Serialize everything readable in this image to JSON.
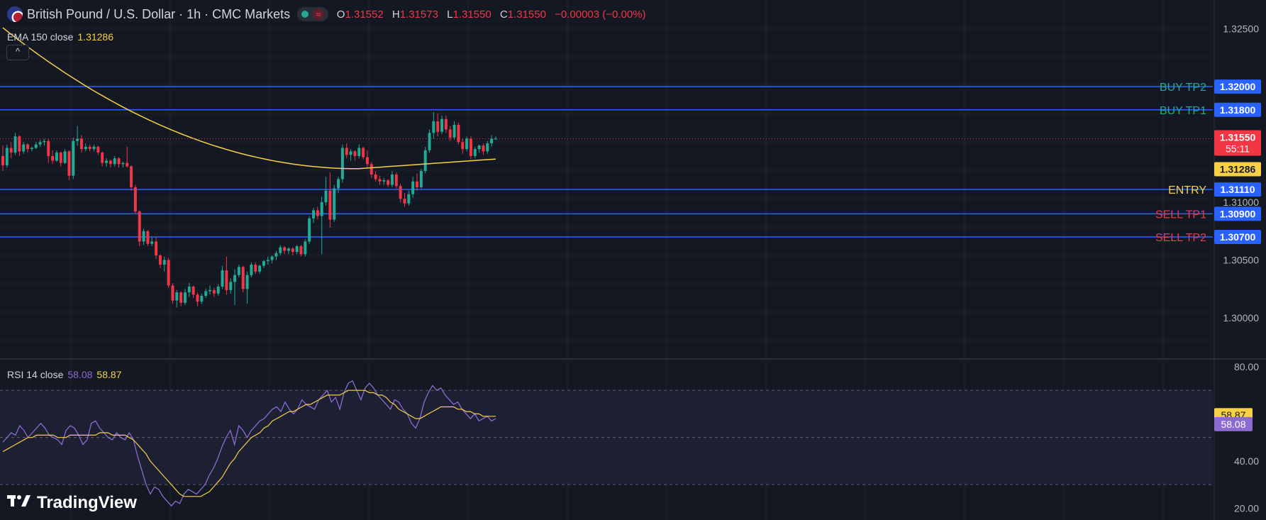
{
  "header": {
    "title": "British Pound / U.S. Dollar · 1h · CMC Markets",
    "ohlc": [
      {
        "key": "O",
        "value": "1.31552"
      },
      {
        "key": "H",
        "value": "1.31573"
      },
      {
        "key": "L",
        "value": "1.31550"
      },
      {
        "key": "C",
        "value": "1.31550"
      }
    ],
    "change": "−0.00003 (−0.00%)"
  },
  "ema_legend": {
    "label": "EMA 150 close",
    "value": "1.31286"
  },
  "rsi_legend": {
    "label": "RSI 14 close",
    "value1": "58.08",
    "value2": "58.87"
  },
  "collapse_icon": "chevron-up-icon",
  "brand": {
    "logo_text": "TradingView",
    "icon": "tradingview-logo-icon"
  },
  "colors": {
    "background": "#141823",
    "up": "#22ab94",
    "down": "#f23645",
    "ema": "#f7d046",
    "level_line": "#2962ff",
    "rsi": "#8b6bd3",
    "rsi_ma": "#f7d046"
  },
  "chart_data": [
    {
      "type": "candlestick",
      "title": "British Pound / U.S. Dollar · 1h · CMC Markets",
      "ylim": [
        1.2965,
        1.3275
      ],
      "y_ticks": [
        "1.32500",
        "1.31000",
        "1.30500",
        "1.30000"
      ],
      "candles": [
        {
          "o": 1.314,
          "h": 1.3149,
          "l": 1.3127,
          "c": 1.3132
        },
        {
          "o": 1.3132,
          "h": 1.315,
          "l": 1.313,
          "c": 1.3147
        },
        {
          "o": 1.3147,
          "h": 1.3152,
          "l": 1.3138,
          "c": 1.3143
        },
        {
          "o": 1.3143,
          "h": 1.316,
          "l": 1.3141,
          "c": 1.3157
        },
        {
          "o": 1.3157,
          "h": 1.3158,
          "l": 1.314,
          "c": 1.3144
        },
        {
          "o": 1.3144,
          "h": 1.3152,
          "l": 1.3142,
          "c": 1.315
        },
        {
          "o": 1.315,
          "h": 1.3151,
          "l": 1.3143,
          "c": 1.3146
        },
        {
          "o": 1.3146,
          "h": 1.3148,
          "l": 1.3144,
          "c": 1.3147
        },
        {
          "o": 1.3147,
          "h": 1.3152,
          "l": 1.3146,
          "c": 1.315
        },
        {
          "o": 1.315,
          "h": 1.3154,
          "l": 1.3148,
          "c": 1.3152
        },
        {
          "o": 1.3152,
          "h": 1.3155,
          "l": 1.3149,
          "c": 1.3153
        },
        {
          "o": 1.3153,
          "h": 1.3155,
          "l": 1.3134,
          "c": 1.314
        },
        {
          "o": 1.314,
          "h": 1.3145,
          "l": 1.3133,
          "c": 1.3136
        },
        {
          "o": 1.3136,
          "h": 1.3145,
          "l": 1.3135,
          "c": 1.3143
        },
        {
          "o": 1.3143,
          "h": 1.3144,
          "l": 1.3131,
          "c": 1.3134
        },
        {
          "o": 1.3134,
          "h": 1.3146,
          "l": 1.3133,
          "c": 1.3144
        },
        {
          "o": 1.3144,
          "h": 1.3145,
          "l": 1.3119,
          "c": 1.3123
        },
        {
          "o": 1.3123,
          "h": 1.3156,
          "l": 1.312,
          "c": 1.3153
        },
        {
          "o": 1.3153,
          "h": 1.3166,
          "l": 1.3149,
          "c": 1.3155
        },
        {
          "o": 1.3155,
          "h": 1.3158,
          "l": 1.3143,
          "c": 1.3146
        },
        {
          "o": 1.3146,
          "h": 1.3151,
          "l": 1.3144,
          "c": 1.3148
        },
        {
          "o": 1.3148,
          "h": 1.315,
          "l": 1.3144,
          "c": 1.3146
        },
        {
          "o": 1.3146,
          "h": 1.315,
          "l": 1.3144,
          "c": 1.3148
        },
        {
          "o": 1.3148,
          "h": 1.3149,
          "l": 1.3141,
          "c": 1.3143
        },
        {
          "o": 1.3143,
          "h": 1.3144,
          "l": 1.3131,
          "c": 1.3134
        },
        {
          "o": 1.3134,
          "h": 1.3138,
          "l": 1.3131,
          "c": 1.3136
        },
        {
          "o": 1.3136,
          "h": 1.3137,
          "l": 1.313,
          "c": 1.3133
        },
        {
          "o": 1.3133,
          "h": 1.314,
          "l": 1.3131,
          "c": 1.3138
        },
        {
          "o": 1.3138,
          "h": 1.3139,
          "l": 1.313,
          "c": 1.3133
        },
        {
          "o": 1.3133,
          "h": 1.3135,
          "l": 1.313,
          "c": 1.3134
        },
        {
          "o": 1.3134,
          "h": 1.3148,
          "l": 1.313,
          "c": 1.3131
        },
        {
          "o": 1.3131,
          "h": 1.3132,
          "l": 1.311,
          "c": 1.3113
        },
        {
          "o": 1.3113,
          "h": 1.3115,
          "l": 1.309,
          "c": 1.3092
        },
        {
          "o": 1.3092,
          "h": 1.3093,
          "l": 1.3062,
          "c": 1.3066
        },
        {
          "o": 1.3066,
          "h": 1.3077,
          "l": 1.3063,
          "c": 1.3075
        },
        {
          "o": 1.3075,
          "h": 1.3076,
          "l": 1.3062,
          "c": 1.3064
        },
        {
          "o": 1.3064,
          "h": 1.307,
          "l": 1.3062,
          "c": 1.3066
        },
        {
          "o": 1.3066,
          "h": 1.307,
          "l": 1.3051,
          "c": 1.3054
        },
        {
          "o": 1.3054,
          "h": 1.3055,
          "l": 1.3043,
          "c": 1.3046
        },
        {
          "o": 1.3046,
          "h": 1.3053,
          "l": 1.304,
          "c": 1.305
        },
        {
          "o": 1.305,
          "h": 1.3052,
          "l": 1.3026,
          "c": 1.3028
        },
        {
          "o": 1.3028,
          "h": 1.303,
          "l": 1.3012,
          "c": 1.3015
        },
        {
          "o": 1.3015,
          "h": 1.3024,
          "l": 1.3009,
          "c": 1.3022
        },
        {
          "o": 1.3022,
          "h": 1.3023,
          "l": 1.301,
          "c": 1.3013
        },
        {
          "o": 1.3013,
          "h": 1.3025,
          "l": 1.3011,
          "c": 1.3022
        },
        {
          "o": 1.3022,
          "h": 1.303,
          "l": 1.3018,
          "c": 1.3027
        },
        {
          "o": 1.3027,
          "h": 1.3028,
          "l": 1.3017,
          "c": 1.302
        },
        {
          "o": 1.302,
          "h": 1.3022,
          "l": 1.301,
          "c": 1.3014
        },
        {
          "o": 1.3014,
          "h": 1.3021,
          "l": 1.3012,
          "c": 1.3019
        },
        {
          "o": 1.3019,
          "h": 1.3025,
          "l": 1.3017,
          "c": 1.3023
        },
        {
          "o": 1.3023,
          "h": 1.3028,
          "l": 1.302,
          "c": 1.3024
        },
        {
          "o": 1.3024,
          "h": 1.3026,
          "l": 1.3018,
          "c": 1.3021
        },
        {
          "o": 1.3021,
          "h": 1.3029,
          "l": 1.3019,
          "c": 1.3027
        },
        {
          "o": 1.3027,
          "h": 1.3045,
          "l": 1.3025,
          "c": 1.3041
        },
        {
          "o": 1.3041,
          "h": 1.3053,
          "l": 1.302,
          "c": 1.3024
        },
        {
          "o": 1.3024,
          "h": 1.3034,
          "l": 1.3021,
          "c": 1.3031
        },
        {
          "o": 1.3031,
          "h": 1.3042,
          "l": 1.3011,
          "c": 1.3037
        },
        {
          "o": 1.3037,
          "h": 1.3046,
          "l": 1.3035,
          "c": 1.3044
        },
        {
          "o": 1.3044,
          "h": 1.3045,
          "l": 1.3022,
          "c": 1.3025
        },
        {
          "o": 1.3025,
          "h": 1.304,
          "l": 1.3012,
          "c": 1.3037
        },
        {
          "o": 1.3037,
          "h": 1.3048,
          "l": 1.3035,
          "c": 1.3046
        },
        {
          "o": 1.3046,
          "h": 1.3048,
          "l": 1.3038,
          "c": 1.304
        },
        {
          "o": 1.304,
          "h": 1.3046,
          "l": 1.3038,
          "c": 1.3045
        },
        {
          "o": 1.3045,
          "h": 1.305,
          "l": 1.3043,
          "c": 1.3049
        },
        {
          "o": 1.3049,
          "h": 1.3053,
          "l": 1.3046,
          "c": 1.305
        },
        {
          "o": 1.305,
          "h": 1.3054,
          "l": 1.3047,
          "c": 1.3053
        },
        {
          "o": 1.3053,
          "h": 1.3058,
          "l": 1.305,
          "c": 1.3056
        },
        {
          "o": 1.3056,
          "h": 1.3063,
          "l": 1.3054,
          "c": 1.3061
        },
        {
          "o": 1.3061,
          "h": 1.3062,
          "l": 1.3055,
          "c": 1.3058
        },
        {
          "o": 1.3058,
          "h": 1.3061,
          "l": 1.3055,
          "c": 1.306
        },
        {
          "o": 1.306,
          "h": 1.3061,
          "l": 1.3054,
          "c": 1.3057
        },
        {
          "o": 1.3057,
          "h": 1.3063,
          "l": 1.3055,
          "c": 1.3062
        },
        {
          "o": 1.3062,
          "h": 1.3063,
          "l": 1.3053,
          "c": 1.3055
        },
        {
          "o": 1.3055,
          "h": 1.3068,
          "l": 1.3053,
          "c": 1.3066
        },
        {
          "o": 1.3066,
          "h": 1.3088,
          "l": 1.3064,
          "c": 1.3086
        },
        {
          "o": 1.3086,
          "h": 1.3095,
          "l": 1.3082,
          "c": 1.3093
        },
        {
          "o": 1.3093,
          "h": 1.3096,
          "l": 1.3085,
          "c": 1.3088
        },
        {
          "o": 1.3088,
          "h": 1.3105,
          "l": 1.3055,
          "c": 1.31
        },
        {
          "o": 1.31,
          "h": 1.3122,
          "l": 1.3097,
          "c": 1.311
        },
        {
          "o": 1.311,
          "h": 1.3126,
          "l": 1.3078,
          "c": 1.3085
        },
        {
          "o": 1.3085,
          "h": 1.3115,
          "l": 1.3083,
          "c": 1.3112
        },
        {
          "o": 1.3112,
          "h": 1.3122,
          "l": 1.3108,
          "c": 1.312
        },
        {
          "o": 1.312,
          "h": 1.315,
          "l": 1.3117,
          "c": 1.3147
        },
        {
          "o": 1.3147,
          "h": 1.3151,
          "l": 1.3138,
          "c": 1.3141
        },
        {
          "o": 1.3141,
          "h": 1.3146,
          "l": 1.3136,
          "c": 1.3144
        },
        {
          "o": 1.3144,
          "h": 1.3145,
          "l": 1.3136,
          "c": 1.314
        },
        {
          "o": 1.314,
          "h": 1.315,
          "l": 1.3138,
          "c": 1.3147
        },
        {
          "o": 1.3147,
          "h": 1.3148,
          "l": 1.3137,
          "c": 1.3139
        },
        {
          "o": 1.3139,
          "h": 1.3145,
          "l": 1.313,
          "c": 1.3133
        },
        {
          "o": 1.3133,
          "h": 1.3135,
          "l": 1.3121,
          "c": 1.3124
        },
        {
          "o": 1.3124,
          "h": 1.3127,
          "l": 1.3118,
          "c": 1.312
        },
        {
          "o": 1.312,
          "h": 1.3123,
          "l": 1.3115,
          "c": 1.3118
        },
        {
          "o": 1.3118,
          "h": 1.3121,
          "l": 1.3115,
          "c": 1.3119
        },
        {
          "o": 1.3119,
          "h": 1.312,
          "l": 1.3113,
          "c": 1.3115
        },
        {
          "o": 1.3115,
          "h": 1.3127,
          "l": 1.3113,
          "c": 1.3124
        },
        {
          "o": 1.3124,
          "h": 1.3126,
          "l": 1.3112,
          "c": 1.3114
        },
        {
          "o": 1.3114,
          "h": 1.3116,
          "l": 1.31,
          "c": 1.3103
        },
        {
          "o": 1.3103,
          "h": 1.3108,
          "l": 1.3096,
          "c": 1.3099
        },
        {
          "o": 1.3099,
          "h": 1.311,
          "l": 1.3097,
          "c": 1.3107
        },
        {
          "o": 1.3107,
          "h": 1.3122,
          "l": 1.3104,
          "c": 1.3118
        },
        {
          "o": 1.3118,
          "h": 1.3125,
          "l": 1.311,
          "c": 1.3113
        },
        {
          "o": 1.3113,
          "h": 1.3129,
          "l": 1.3112,
          "c": 1.3127
        },
        {
          "o": 1.3127,
          "h": 1.3148,
          "l": 1.3125,
          "c": 1.3145
        },
        {
          "o": 1.3145,
          "h": 1.3163,
          "l": 1.3143,
          "c": 1.316
        },
        {
          "o": 1.316,
          "h": 1.3178,
          "l": 1.3155,
          "c": 1.317
        },
        {
          "o": 1.317,
          "h": 1.3177,
          "l": 1.3157,
          "c": 1.3161
        },
        {
          "o": 1.3161,
          "h": 1.3175,
          "l": 1.3159,
          "c": 1.3172
        },
        {
          "o": 1.3172,
          "h": 1.3175,
          "l": 1.316,
          "c": 1.3163
        },
        {
          "o": 1.3163,
          "h": 1.3166,
          "l": 1.3153,
          "c": 1.3156
        },
        {
          "o": 1.3156,
          "h": 1.317,
          "l": 1.3154,
          "c": 1.3167
        },
        {
          "o": 1.3167,
          "h": 1.3169,
          "l": 1.315,
          "c": 1.3152
        },
        {
          "o": 1.3152,
          "h": 1.3155,
          "l": 1.3142,
          "c": 1.3146
        },
        {
          "o": 1.3146,
          "h": 1.3157,
          "l": 1.3144,
          "c": 1.3155
        },
        {
          "o": 1.3155,
          "h": 1.3157,
          "l": 1.3137,
          "c": 1.314
        },
        {
          "o": 1.314,
          "h": 1.3148,
          "l": 1.3138,
          "c": 1.3146
        },
        {
          "o": 1.3146,
          "h": 1.315,
          "l": 1.3143,
          "c": 1.3149
        },
        {
          "o": 1.3149,
          "h": 1.3151,
          "l": 1.3141,
          "c": 1.3144
        },
        {
          "o": 1.3144,
          "h": 1.3153,
          "l": 1.3142,
          "c": 1.3151
        },
        {
          "o": 1.3151,
          "h": 1.3158,
          "l": 1.3148,
          "c": 1.3155
        },
        {
          "o": 1.3155,
          "h": 1.3157,
          "l": 1.3154,
          "c": 1.3155
        }
      ],
      "ema": {
        "label": "EMA 150 close",
        "start": 1.3251,
        "end": 1.3129
      },
      "current_price": {
        "value": "1.31550",
        "countdown": "55:11"
      },
      "ema_value_tag": "1.31286",
      "levels": [
        {
          "name": "BUY TP2",
          "price": 1.32,
          "tag": "1.32000",
          "label_color": "#22ab94"
        },
        {
          "name": "BUY TP1",
          "price": 1.318,
          "tag": "1.31800",
          "label_color": "#22ab94"
        },
        {
          "name": "ENTRY",
          "price": 1.3111,
          "tag": "1.31110",
          "label_color": "#f7d046"
        },
        {
          "name": "SELL TP1",
          "price": 1.309,
          "tag": "1.30900",
          "label_color": "#f23645"
        },
        {
          "name": "SELL TP2",
          "price": 1.307,
          "tag": "1.30700",
          "label_color": "#f23645"
        }
      ],
      "grid": true
    },
    {
      "type": "line",
      "title": "RSI 14 close",
      "ylim": [
        15,
        83
      ],
      "y_ticks": [
        "80.00",
        "40.00",
        "20.00"
      ],
      "bands": [
        70,
        50,
        30
      ],
      "series": [
        {
          "values": [
            48,
            50,
            52,
            51,
            55,
            53,
            50,
            52,
            54,
            56,
            54,
            51,
            50,
            49,
            47,
            53,
            55,
            54,
            51,
            47,
            49,
            56,
            57,
            54,
            52,
            50,
            49,
            52,
            50,
            49,
            52,
            49,
            42,
            36,
            30,
            26,
            29,
            28,
            25,
            23,
            21,
            23,
            22,
            26,
            28,
            27,
            26,
            28,
            30,
            34,
            37,
            41,
            46,
            50,
            53,
            47,
            55,
            53,
            50,
            53,
            55,
            57,
            58,
            60,
            62,
            63,
            61,
            65,
            62,
            60,
            62,
            66,
            64,
            63,
            62,
            66,
            68,
            70,
            65,
            67,
            62,
            69,
            73,
            74,
            70,
            66,
            71,
            73,
            71,
            68,
            66,
            64,
            62,
            66,
            65,
            62,
            60,
            56,
            54,
            58,
            65,
            69,
            72,
            70,
            71,
            68,
            66,
            64,
            65,
            62,
            60,
            58,
            60,
            57,
            58,
            59,
            57,
            58
          ],
          "color": "#8b6bd3"
        },
        {
          "values": [
            44,
            45,
            46,
            47,
            48,
            49,
            50,
            50,
            51,
            51,
            51,
            51,
            51,
            50,
            50,
            50,
            51,
            51,
            51,
            51,
            51,
            51,
            51,
            52,
            52,
            52,
            51,
            51,
            51,
            51,
            50,
            49,
            47,
            45,
            43,
            40,
            38,
            36,
            34,
            32,
            30,
            28,
            26,
            25,
            25,
            25,
            25,
            25,
            26,
            27,
            29,
            31,
            33,
            36,
            39,
            41,
            44,
            46,
            48,
            50,
            51,
            52,
            54,
            55,
            57,
            58,
            59,
            60,
            61,
            61,
            62,
            63,
            64,
            64,
            65,
            66,
            67,
            68,
            68,
            68,
            68,
            69,
            70,
            70,
            70,
            70,
            70,
            69,
            69,
            68,
            68,
            67,
            65,
            64,
            62,
            61,
            60,
            59,
            58,
            58,
            59,
            60,
            61,
            62,
            63,
            63,
            63,
            63,
            62,
            62,
            61,
            61,
            60,
            60,
            59,
            59,
            59,
            59
          ],
          "color": "#f7d046"
        }
      ],
      "value_tags": [
        "58.87",
        "58.08"
      ]
    }
  ]
}
